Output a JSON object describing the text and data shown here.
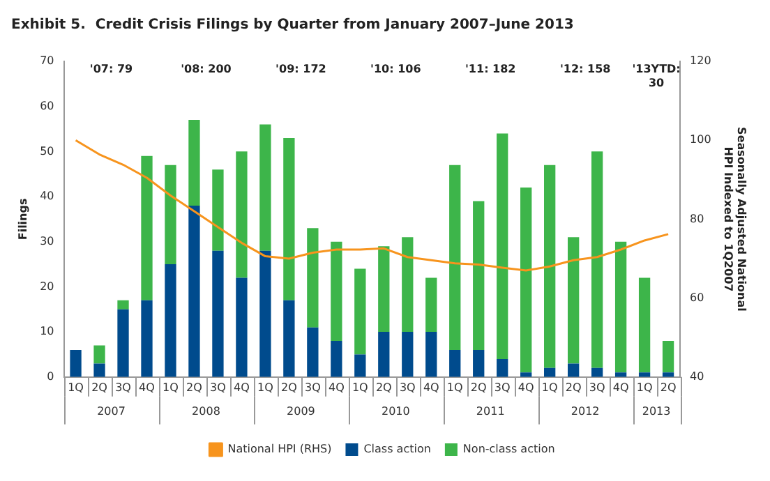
{
  "chart_data": {
    "type": "bar",
    "title": "Exhibit 5.  Credit Crisis Filings by Quarter from January 2007–June 2013",
    "ylabel": "Filings",
    "y2label": "Seasonally Adjusted National HPI Indexed to 1Q2007",
    "categories": [
      "1Q",
      "2Q",
      "3Q",
      "4Q",
      "1Q",
      "2Q",
      "3Q",
      "4Q",
      "1Q",
      "2Q",
      "3Q",
      "4Q",
      "1Q",
      "2Q",
      "3Q",
      "4Q",
      "1Q",
      "2Q",
      "3Q",
      "4Q",
      "1Q",
      "2Q",
      "3Q",
      "4Q",
      "1Q",
      "2Q"
    ],
    "stacked": true,
    "series": [
      {
        "name": "Class action",
        "color": "#004b8d",
        "values": [
          6,
          3,
          15,
          17,
          25,
          38,
          28,
          22,
          28,
          17,
          11,
          8,
          5,
          10,
          10,
          10,
          6,
          6,
          4,
          1,
          2,
          3,
          2,
          1,
          1,
          1
        ]
      },
      {
        "name": "Non-class action",
        "color": "#3db54a",
        "values": [
          0,
          4,
          2,
          32,
          22,
          19,
          18,
          28,
          28,
          36,
          22,
          22,
          19,
          19,
          21,
          12,
          41,
          33,
          50,
          41,
          45,
          28,
          48,
          29,
          21,
          7
        ]
      },
      {
        "name": "National HPI (RHS)",
        "type": "line",
        "axis": "y2",
        "color": "#f7941d",
        "marker": "none",
        "values": [
          100,
          96.4,
          93.8,
          90.5,
          86,
          82,
          78,
          74,
          70.6,
          70,
          71.5,
          72.3,
          72.3,
          72.6,
          70.4,
          69.6,
          68.8,
          68.5,
          67.7,
          67,
          68,
          69.6,
          70.4,
          72.3,
          74.6,
          76.2
        ]
      }
    ],
    "ylim": [
      0,
      70
    ],
    "yticks": [
      0,
      10,
      20,
      30,
      40,
      50,
      60,
      70
    ],
    "y2lim": [
      40,
      120
    ],
    "y2ticks": [
      40,
      60,
      80,
      100,
      120
    ],
    "grid": false,
    "legend": "bottom",
    "annotations": [
      "'07: 79",
      "'08: 200",
      "'09: 172",
      "'10: 106",
      "'11: 182",
      "'12: 158",
      "'13YTD: 30",
      "2007",
      "2008",
      "2009",
      "2010",
      "2011",
      "2012",
      "2013"
    ]
  }
}
